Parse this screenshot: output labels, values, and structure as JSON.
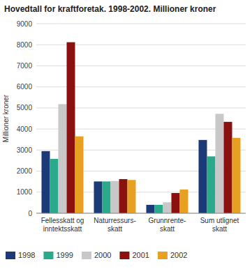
{
  "chart_data": {
    "type": "bar",
    "title": "Hovedtall for kraftforetak. 1998-2002. Millioner kroner",
    "ylabel": "Millioner kroner",
    "categories": [
      "Fellesskatt og\ninntektsskatt",
      "Naturressurs-\nskatt",
      "Grunnrente-\nskatt",
      "Sum utlignet\nskatt"
    ],
    "series": [
      {
        "name": "1998",
        "color": "#1c3a78",
        "values": [
          2950,
          1510,
          400,
          3480
        ]
      },
      {
        "name": "1999",
        "color": "#2aaa8a",
        "values": [
          2580,
          1510,
          400,
          2700
        ]
      },
      {
        "name": "2000",
        "color": "#c8c8c8",
        "values": [
          5180,
          1530,
          520,
          4720
        ]
      },
      {
        "name": "2001",
        "color": "#8b1010",
        "values": [
          8120,
          1620,
          960,
          4340
        ]
      },
      {
        "name": "2002",
        "color": "#e8a020",
        "values": [
          3650,
          1580,
          1130,
          3580
        ]
      }
    ],
    "ylim": [
      0,
      9000
    ],
    "yticks": [
      0,
      1000,
      2000,
      3000,
      4000,
      5000,
      6000,
      7000,
      8000,
      9000
    ],
    "grid": true,
    "legend": "lower left"
  }
}
